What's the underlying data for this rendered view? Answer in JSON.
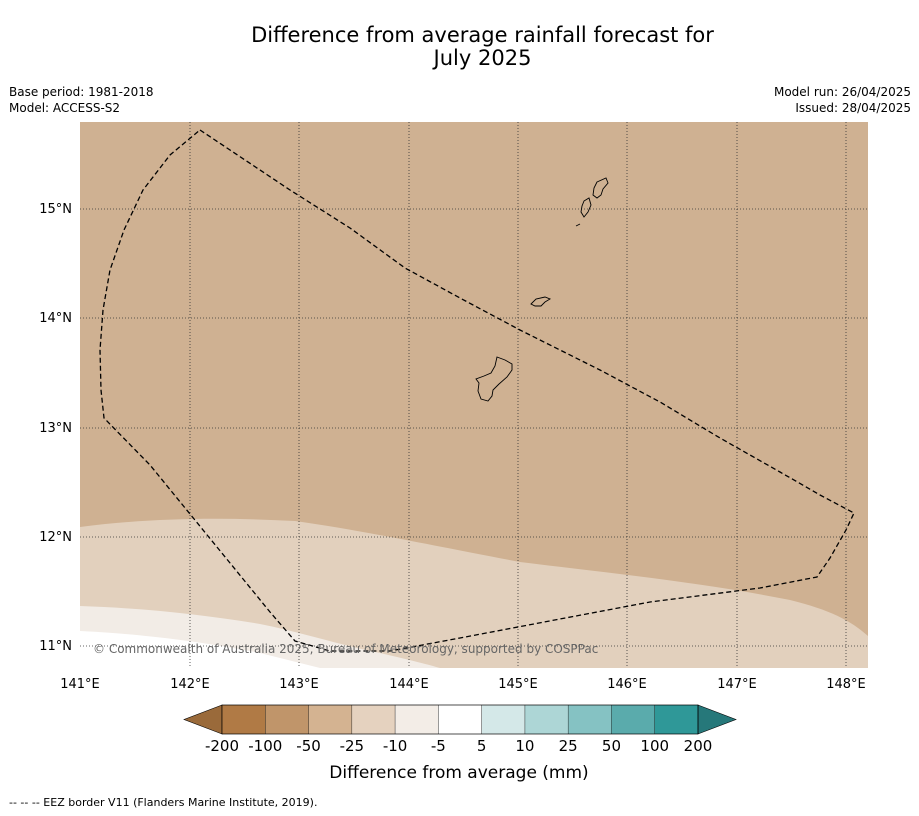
{
  "title": {
    "line1": "Difference from average rainfall forecast for",
    "line2": "July 2025"
  },
  "meta_left": {
    "base_period": "Base period: 1981-2018",
    "model": "Model: ACCESS-S2"
  },
  "meta_right": {
    "model_run": "Model run: 26/04/2025",
    "issued": "Issued: 28/04/2025"
  },
  "map": {
    "lon_labels": [
      "141°E",
      "142°E",
      "143°E",
      "144°E",
      "145°E",
      "146°E",
      "147°E",
      "148°E"
    ],
    "lat_labels": [
      "15°N",
      "14°N",
      "13°N",
      "12°N",
      "11°N"
    ],
    "copyright": "© Commonwealth of Australia 2025, Bureau of Meteorology, supported by COSPPac",
    "fill_colors": {
      "below_25_to_10": "#cfb192",
      "below_10_to_5": "#e2d0bd",
      "below_5_to_0": "#f2ece6"
    }
  },
  "colorbar": {
    "title": "Difference from average (mm)",
    "ticks": [
      "-200",
      "-100",
      "-50",
      "-25",
      "-10",
      "-5",
      "5",
      "10",
      "25",
      "50",
      "100",
      "200"
    ],
    "colors": [
      "#9a6a3a",
      "#b07a45",
      "#c0956a",
      "#d4b391",
      "#e5d2bf",
      "#f3ede7",
      "#ffffff",
      "#d4e8e8",
      "#add6d6",
      "#85c2c3",
      "#5aabac",
      "#2f9898",
      "#26787a"
    ]
  },
  "footer": "--  --  -- EEZ border V11 (Flanders Marine Institute, 2019)."
}
